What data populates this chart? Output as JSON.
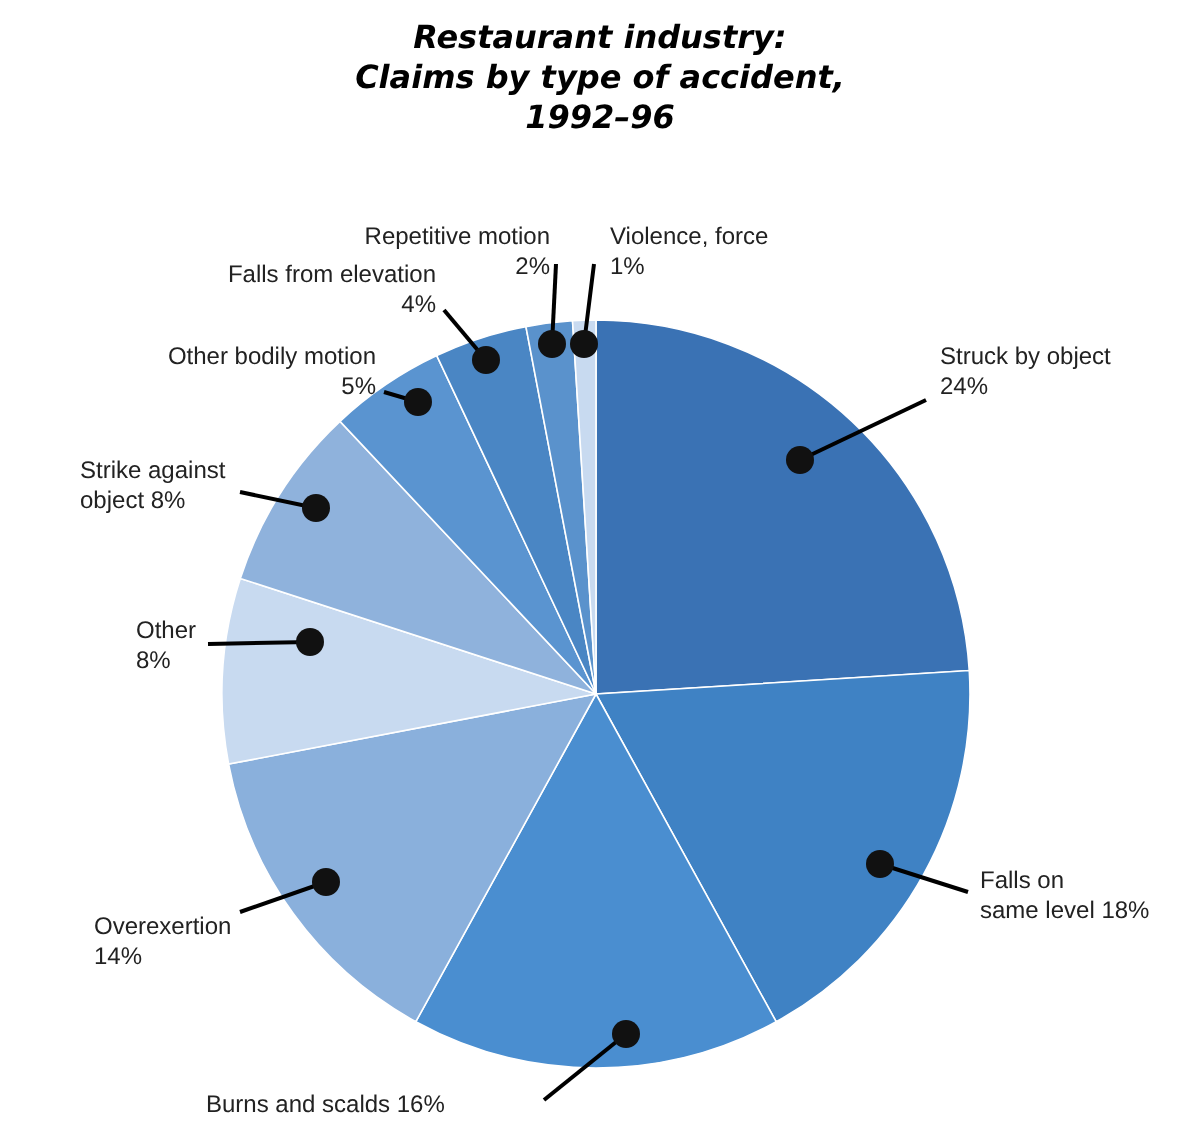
{
  "chart_data": {
    "type": "pie",
    "title": "Restaurant industry:\nClaims by type of accident,\n1992–96",
    "categories": [
      "Struck by object",
      "Falls on same level",
      "Burns and scalds",
      "Overexertion",
      "Other",
      "Strike against object",
      "Other bodily motion",
      "Falls from elevation",
      "Repetitive motion",
      "Violence, force"
    ],
    "values": [
      24,
      18,
      16,
      14,
      8,
      8,
      5,
      4,
      2,
      1
    ],
    "value_labels": [
      "24%",
      "18%",
      "16%",
      "14%",
      "8%",
      "8%",
      "5%",
      "4%",
      "2%",
      "1%"
    ],
    "colors": [
      "#3a72b4",
      "#3f82c4",
      "#4a8ed0",
      "#8ab0dc",
      "#c8daf0",
      "#8fb2dc",
      "#5a94d0",
      "#4a86c4",
      "#5a92cc",
      "#c8daf0"
    ]
  }
}
